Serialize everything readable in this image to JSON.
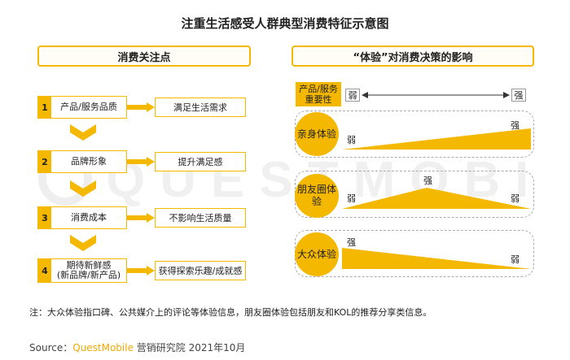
{
  "title": "注重生活感受人群典型消费特征示意图",
  "left_header": "消费关注点",
  "right_header": "“体验”对消费决策的影响",
  "steps": [
    {
      "num": "1",
      "label": "产品/服务品质",
      "result": "满足生活需求"
    },
    {
      "num": "2",
      "label": "品牌形象",
      "result": "提升满足感"
    },
    {
      "num": "3",
      "label": "消费成本",
      "result": "不影响生活质量"
    },
    {
      "num": "4",
      "label": "期待新鲜感\n(新品牌/新产品)",
      "result": "获得探索乐趣/成就感"
    }
  ],
  "importance": {
    "label": "产品/服务重要性",
    "weak": "弱",
    "strong": "强"
  },
  "rows": [
    {
      "circle": "亲身体验",
      "left": "弱",
      "right": "强",
      "shape": "increasing"
    },
    {
      "circle": "朋友圈体验",
      "left": "弱",
      "peak": "强",
      "right": "弱",
      "shape": "peak"
    },
    {
      "circle": "大众体验",
      "left": "强",
      "right": "弱",
      "shape": "decreasing"
    }
  ],
  "note": "注：大众体验指口碑、公共媒介上的评论等体验信息，朋友圈体验包括朋友和KOL的推荐分享类信息。",
  "source": {
    "prefix": "Source：",
    "brand": "QuestMobile",
    "suffix": " 营销研究院 2021年10月"
  },
  "watermark": "QUESTMOBILE",
  "colors": {
    "accent": "#f5b800",
    "frame": "#aaaaaa"
  }
}
